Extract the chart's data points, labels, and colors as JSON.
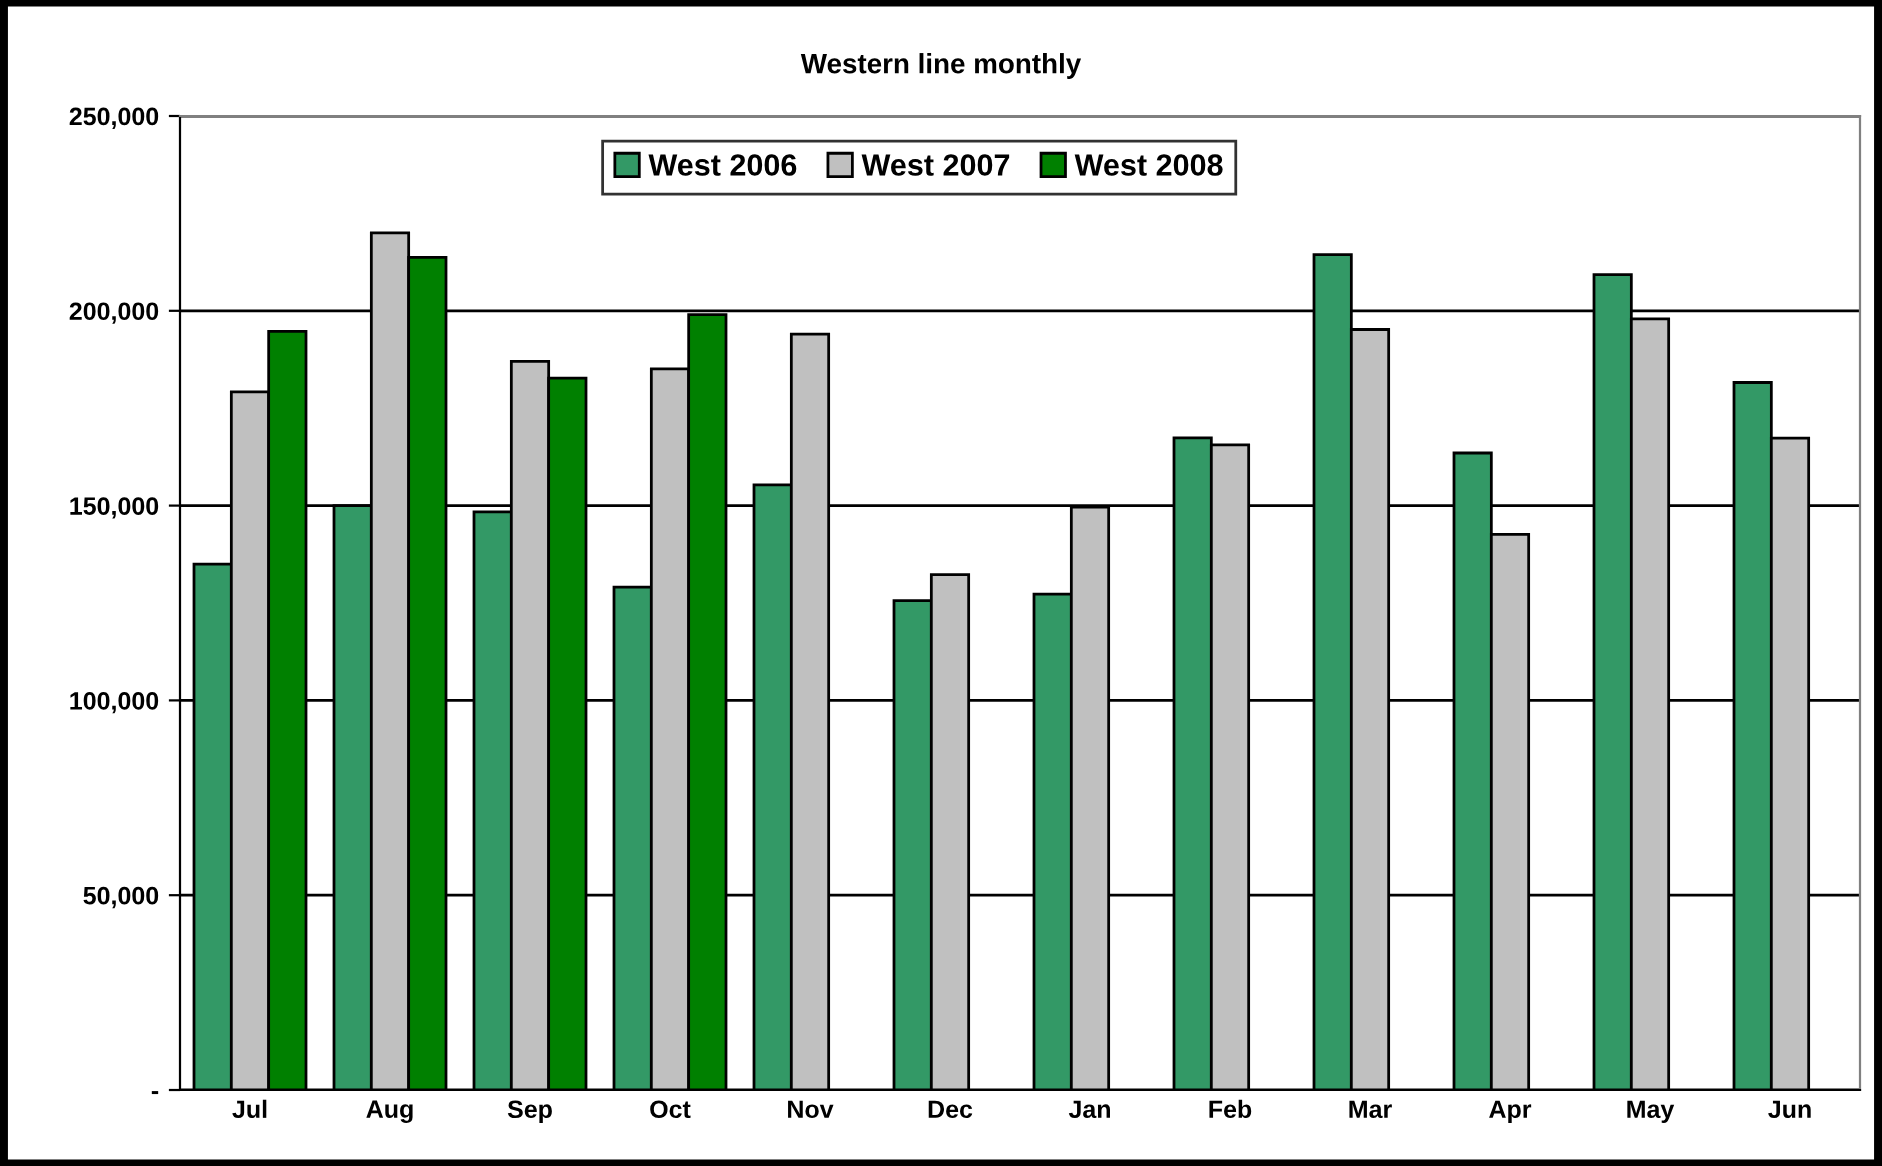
{
  "chart_data": {
    "type": "bar",
    "title": "Western line monthly",
    "categories": [
      "Jul",
      "Aug",
      "Sep",
      "Oct",
      "Nov",
      "Dec",
      "Jan",
      "Feb",
      "Mar",
      "Apr",
      "May",
      "Jun"
    ],
    "series": [
      {
        "name": "West 2006",
        "color": "#339966",
        "values": [
          135000,
          150000,
          148400,
          129100,
          155300,
          125600,
          127300,
          167400,
          214400,
          163500,
          209300,
          181600
        ]
      },
      {
        "name": "West 2007",
        "color": "#c0c0c0",
        "values": [
          179200,
          220000,
          187000,
          185100,
          194000,
          132300,
          149600,
          165600,
          195200,
          142600,
          197900,
          167300
        ]
      },
      {
        "name": "West 2008",
        "color": "#008000",
        "values": [
          194700,
          213700,
          182700,
          199000,
          null,
          null,
          null,
          null,
          null,
          null,
          null,
          null
        ]
      }
    ],
    "ylim": [
      0,
      250000
    ],
    "yticks": [
      {
        "value": 0,
        "label": "-"
      },
      {
        "value": 50000,
        "label": "50,000"
      },
      {
        "value": 100000,
        "label": "100,000"
      },
      {
        "value": 150000,
        "label": "150,000"
      },
      {
        "value": 200000,
        "label": "200,000"
      },
      {
        "value": 250000,
        "label": "250,000"
      }
    ],
    "grid": "y",
    "legend": "top"
  }
}
